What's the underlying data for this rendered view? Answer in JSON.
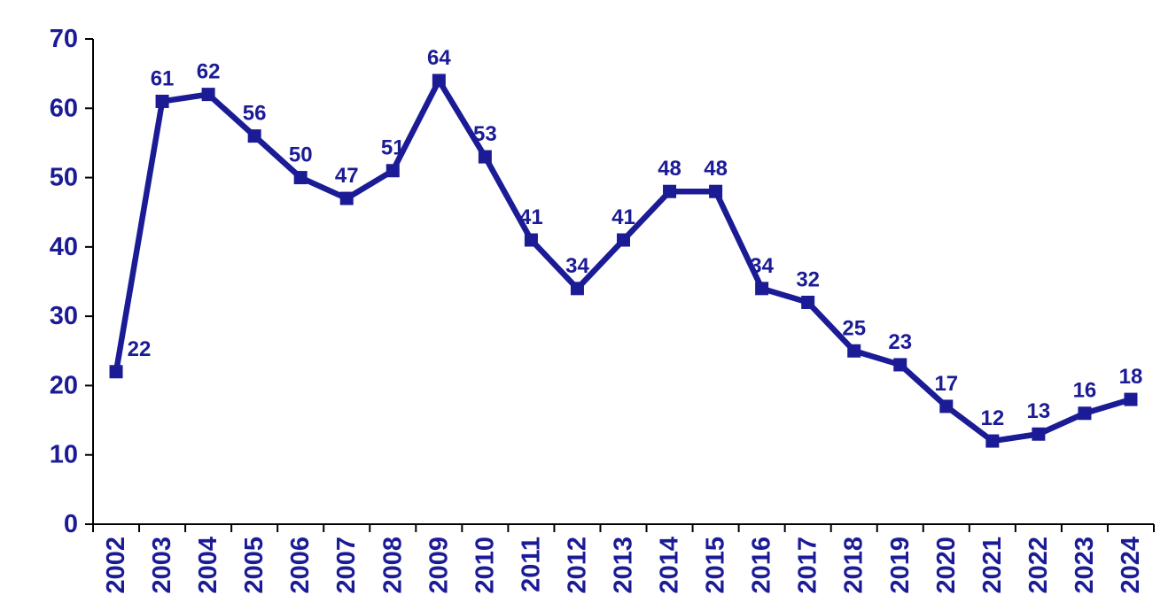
{
  "chart_data": {
    "type": "line",
    "title": "",
    "xlabel": "",
    "ylabel": "",
    "categories": [
      "2002",
      "2003",
      "2004",
      "2005",
      "2006",
      "2007",
      "2008",
      "2009",
      "2010",
      "2011",
      "2012",
      "2013",
      "2014",
      "2015",
      "2016",
      "2017",
      "2018",
      "2019",
      "2020",
      "2021",
      "2022",
      "2023",
      "2024"
    ],
    "values": [
      22,
      61,
      62,
      56,
      50,
      47,
      51,
      64,
      53,
      41,
      34,
      41,
      48,
      48,
      34,
      32,
      25,
      23,
      17,
      12,
      13,
      16,
      18
    ],
    "y_ticks": [
      0,
      10,
      20,
      30,
      40,
      50,
      60,
      70
    ],
    "ylim": [
      0,
      70
    ],
    "grid": false,
    "legend": false,
    "marker": "square",
    "data_label_position": "above",
    "first_label_dx": 26,
    "x_tick_style": "between-categories-rotated-90ccw",
    "colors": {
      "series": "#1b1b96",
      "marker": "#1b1b96",
      "data_label": "#1b1b96",
      "tick_label": "#1b1b96",
      "axis": "#000000",
      "background": "#ffffff"
    }
  }
}
